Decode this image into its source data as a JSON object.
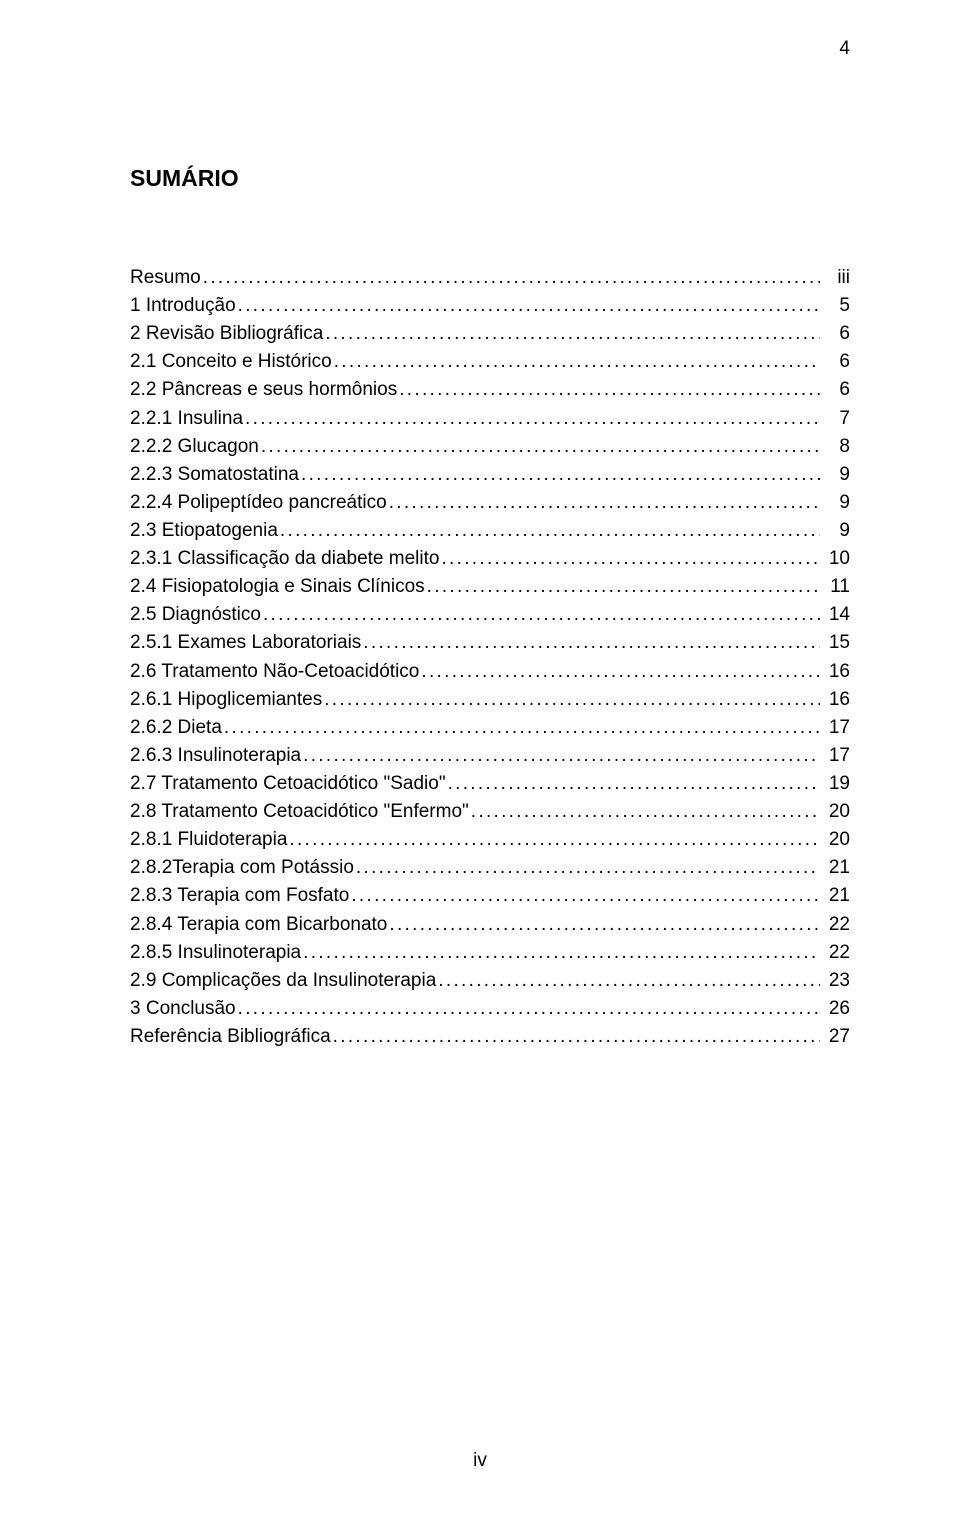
{
  "page_number_top": "4",
  "title": "SUMÁRIO",
  "footer": "iv",
  "toc": [
    {
      "label": "Resumo",
      "page": "iii"
    },
    {
      "label": "1 Introdução",
      "page": "5"
    },
    {
      "label": "2 Revisão Bibliográfica",
      "page": "6"
    },
    {
      "label": "2.1 Conceito e Histórico",
      "page": "6"
    },
    {
      "label": "2.2 Pâncreas e seus hormônios",
      "page": "6"
    },
    {
      "label": "2.2.1 Insulina",
      "page": "7"
    },
    {
      "label": "2.2.2 Glucagon",
      "page": "8"
    },
    {
      "label": "2.2.3 Somatostatina",
      "page": "9"
    },
    {
      "label": "2.2.4 Polipeptídeo pancreático",
      "page": "9"
    },
    {
      "label": "2.3 Etiopatogenia",
      "page": "9"
    },
    {
      "label": "2.3.1 Classificação da diabete melito",
      "page": "10"
    },
    {
      "label": "2.4 Fisiopatologia e Sinais Clínicos",
      "page": "11"
    },
    {
      "label": "2.5 Diagnóstico",
      "page": "14"
    },
    {
      "label": "2.5.1 Exames Laboratoriais",
      "page": "15"
    },
    {
      "label": "2.6 Tratamento Não-Cetoacidótico",
      "page": "16"
    },
    {
      "label": "2.6.1 Hipoglicemiantes",
      "page": "16"
    },
    {
      "label": "2.6.2 Dieta",
      "page": "17"
    },
    {
      "label": "2.6.3 Insulinoterapia",
      "page": "17"
    },
    {
      "label": "2.7 Tratamento Cetoacidótico \"Sadio\"",
      "page": "19"
    },
    {
      "label": "2.8 Tratamento Cetoacidótico \"Enfermo\"",
      "page": "20"
    },
    {
      "label": "2.8.1 Fluidoterapia",
      "page": "20"
    },
    {
      "label": "2.8.2Terapia com Potássio",
      "page": "21"
    },
    {
      "label": "2.8.3 Terapia com Fosfato",
      "page": "21"
    },
    {
      "label": "2.8.4 Terapia com Bicarbonato",
      "page": "22"
    },
    {
      "label": "2.8.5 Insulinoterapia",
      "page": "22"
    },
    {
      "label": "2.9 Complicações da Insulinoterapia",
      "page": "23"
    },
    {
      "label": "3 Conclusão",
      "page": "26"
    },
    {
      "label": "Referência Bibliográfica",
      "page": "27"
    }
  ]
}
